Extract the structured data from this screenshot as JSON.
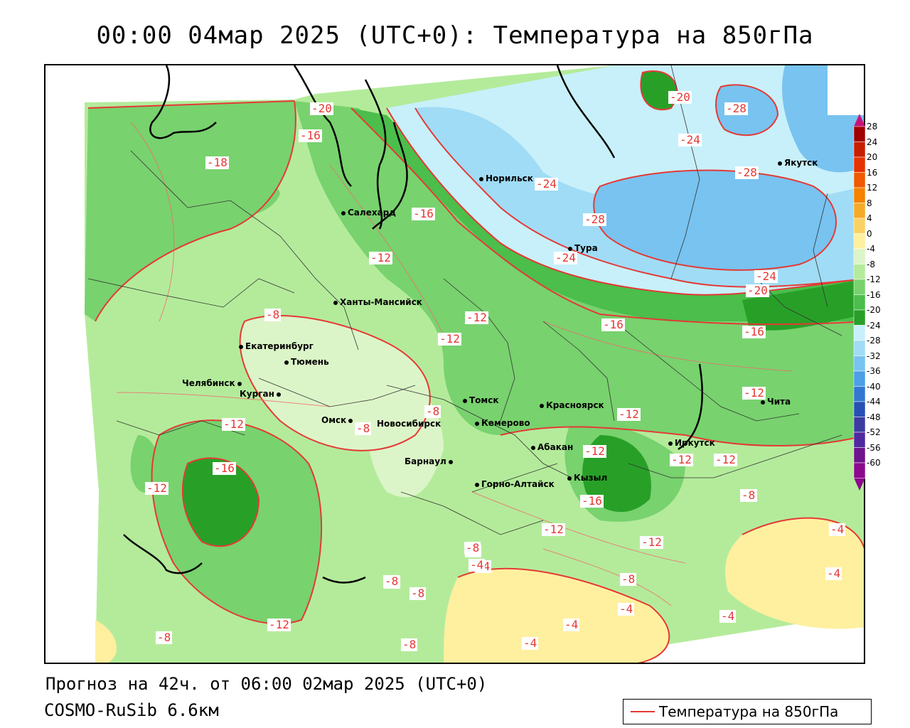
{
  "title": "00:00 04мар 2025 (UTC+0): Температура на 850гПа",
  "footer": {
    "forecast": "Прогноз на 42ч. от 06:00 02мар 2025 (UTC+0)",
    "model": "COSMO-RuSib 6.6км"
  },
  "legend": {
    "label": "Температура на 850гПа",
    "line_color": "#e53935"
  },
  "colorbar": {
    "ticks": [
      "28",
      "24",
      "20",
      "16",
      "12",
      "8",
      "4",
      "0",
      "-4",
      "-8",
      "-12",
      "-16",
      "-20",
      "-24",
      "-28",
      "-32",
      "-36",
      "-40",
      "-44",
      "-48",
      "-52",
      "-56",
      "-60"
    ],
    "colors": [
      "#a00000",
      "#c81e00",
      "#e63200",
      "#f05a00",
      "#f58200",
      "#f5aa28",
      "#fad264",
      "#fff0a0",
      "#dcf5c8",
      "#b4eb9b",
      "#78d26e",
      "#4bbe4b",
      "#28a028",
      "#c8f0fa",
      "#a0dcf5",
      "#78c3f0",
      "#4ba0e6",
      "#3278d2",
      "#2850b4",
      "#3c3ca0",
      "#5028a0",
      "#6e148c",
      "#8c0a8c"
    ]
  },
  "cities": [
    {
      "name": "Якутск"
    },
    {
      "name": "Норильск"
    },
    {
      "name": "Салехард"
    },
    {
      "name": "Тура"
    },
    {
      "name": "Ханты-Мансийск"
    },
    {
      "name": "Екатеринбург"
    },
    {
      "name": "Тюмень"
    },
    {
      "name": "Челябинск"
    },
    {
      "name": "Курган"
    },
    {
      "name": "Омск"
    },
    {
      "name": "Новосибирск"
    },
    {
      "name": "Томск"
    },
    {
      "name": "Кемерово"
    },
    {
      "name": "Красноярск"
    },
    {
      "name": "Барнаул"
    },
    {
      "name": "Абакан"
    },
    {
      "name": "Горно-Алтайск"
    },
    {
      "name": "Кызыл"
    },
    {
      "name": "Иркутск"
    },
    {
      "name": "Чита"
    }
  ],
  "isolines": [
    "-20",
    "-28",
    "-24",
    "-28",
    "-24",
    "-20",
    "-16",
    "-18",
    "-12",
    "-24",
    "-28",
    "-24",
    "-20",
    "-16",
    "-12",
    "-8",
    "-12",
    "-8",
    "-8",
    "-12",
    "-16",
    "-12",
    "-16",
    "-12",
    "-16",
    "-12",
    "-12",
    "-8",
    "-12",
    "-16",
    "-12",
    "-8",
    "-8",
    "-4",
    "-8",
    "-8",
    "-8",
    "-4",
    "-4",
    "-12",
    "-8",
    "-4",
    "-4",
    "-4",
    "-8",
    "-12",
    "-12",
    "-4",
    "-4",
    "-8",
    "-8"
  ]
}
